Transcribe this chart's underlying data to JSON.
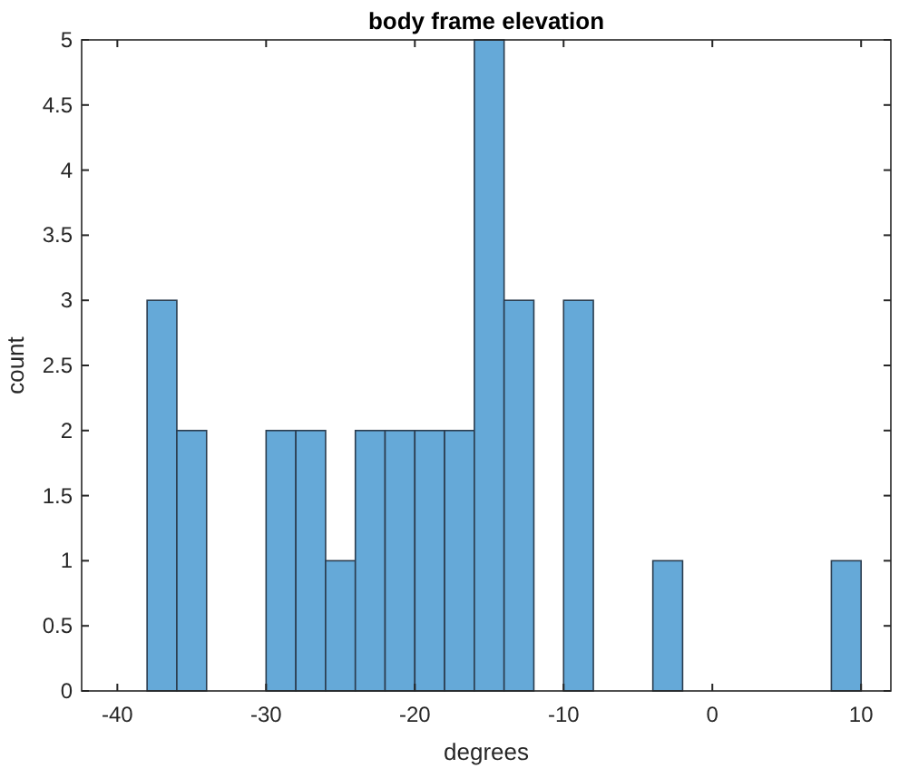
{
  "chart_data": {
    "type": "histogram",
    "title": "body frame elevation",
    "xlabel": "degrees",
    "ylabel": "count",
    "bins": [
      -38,
      -36,
      -34,
      -32,
      -30,
      -28,
      -26,
      -24,
      -22,
      -20,
      -18,
      -16,
      -14,
      -12,
      -10,
      -8,
      -6,
      -4,
      -2,
      0,
      2,
      4,
      6,
      8,
      10
    ],
    "values": [
      3,
      2,
      0,
      0,
      2,
      2,
      1,
      2,
      2,
      2,
      2,
      5,
      3,
      0,
      3,
      0,
      0,
      1,
      0,
      0,
      0,
      0,
      0,
      1
    ],
    "color": "#65a9d8",
    "xlim": [
      -42.4,
      12
    ],
    "xticks": [
      -40,
      -30,
      -20,
      -10,
      0,
      10
    ],
    "ylim": [
      0,
      5
    ],
    "yticks": [
      0,
      0.5,
      1,
      1.5,
      2,
      2.5,
      3,
      3.5,
      4,
      4.5,
      5
    ],
    "grid": false
  }
}
